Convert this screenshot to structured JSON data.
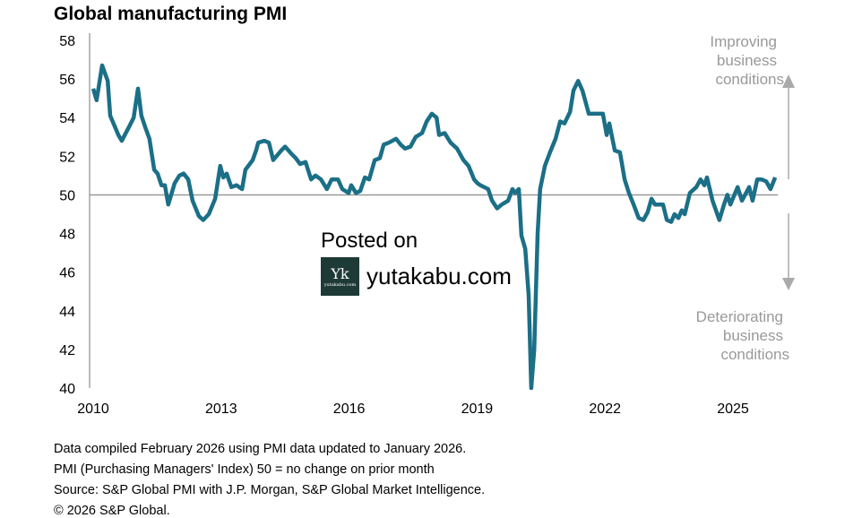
{
  "chart_data": {
    "type": "line",
    "title": "Global manufacturing PMI",
    "xlabel": "",
    "ylabel": "",
    "xlim": [
      2010,
      2026.3
    ],
    "ylim": [
      40,
      58
    ],
    "yticks": [
      40,
      42,
      44,
      46,
      48,
      50,
      52,
      54,
      56,
      58
    ],
    "xticks": [
      2010,
      2013,
      2016,
      2019,
      2022,
      2025
    ],
    "reference_line": 50,
    "series": [
      {
        "name": "Global manufacturing PMI",
        "color": "#1b6f87",
        "x": [
          2010.0,
          2010.08,
          2010.21,
          2010.34,
          2010.4,
          2010.59,
          2010.67,
          2010.86,
          2010.95,
          2011.05,
          2011.13,
          2011.22,
          2011.32,
          2011.43,
          2011.51,
          2011.6,
          2011.68,
          2011.76,
          2011.91,
          2012.02,
          2012.12,
          2012.23,
          2012.33,
          2012.48,
          2012.58,
          2012.71,
          2012.86,
          2012.98,
          2013.05,
          2013.13,
          2013.24,
          2013.36,
          2013.49,
          2013.57,
          2013.74,
          2013.82,
          2013.87,
          2014.01,
          2014.12,
          2014.22,
          2014.41,
          2014.5,
          2014.66,
          2014.75,
          2014.85,
          2014.98,
          2015.11,
          2015.21,
          2015.34,
          2015.48,
          2015.59,
          2015.74,
          2015.84,
          2015.99,
          2016.05,
          2016.16,
          2016.26,
          2016.37,
          2016.47,
          2016.6,
          2016.72,
          2016.81,
          2016.93,
          2017.1,
          2017.21,
          2017.31,
          2017.44,
          2017.56,
          2017.71,
          2017.82,
          2017.94,
          2018.05,
          2018.11,
          2018.24,
          2018.38,
          2018.53,
          2018.68,
          2018.8,
          2018.93,
          2019.01,
          2019.08,
          2019.26,
          2019.35,
          2019.47,
          2019.58,
          2019.73,
          2019.83,
          2019.89,
          2019.98,
          2020.04,
          2020.13,
          2020.21,
          2020.27,
          2020.34,
          2020.42,
          2020.48,
          2020.59,
          2020.71,
          2020.84,
          2020.95,
          2021.05,
          2021.18,
          2021.26,
          2021.37,
          2021.47,
          2021.62,
          2021.83,
          2021.95,
          2022.04,
          2022.1,
          2022.23,
          2022.35,
          2022.46,
          2022.56,
          2022.67,
          2022.79,
          2022.9,
          2023.0,
          2023.09,
          2023.17,
          2023.36,
          2023.45,
          2023.55,
          2023.63,
          2023.72,
          2023.8,
          2023.87,
          2023.99,
          2024.14,
          2024.24,
          2024.33,
          2024.39,
          2024.52,
          2024.68,
          2024.79,
          2024.87,
          2024.94,
          2025.11,
          2025.21,
          2025.38,
          2025.46,
          2025.57,
          2025.67,
          2025.78,
          2025.88,
          2025.99
        ],
        "values": [
          55.5,
          54.9,
          56.7,
          55.9,
          54.1,
          53.1,
          52.8,
          53.6,
          54.0,
          55.5,
          54.1,
          53.5,
          52.9,
          51.3,
          51.1,
          50.5,
          50.5,
          49.5,
          50.6,
          51.0,
          51.1,
          50.8,
          49.7,
          48.9,
          48.7,
          49.0,
          49.8,
          51.5,
          50.9,
          51.1,
          50.4,
          50.5,
          50.3,
          51.3,
          51.8,
          52.3,
          52.7,
          52.8,
          52.7,
          51.8,
          52.3,
          52.5,
          52.1,
          51.9,
          51.6,
          51.7,
          50.8,
          51.0,
          50.8,
          50.3,
          50.8,
          50.8,
          50.3,
          50.1,
          50.5,
          50.1,
          50.2,
          50.9,
          50.8,
          51.8,
          51.9,
          52.6,
          52.7,
          52.9,
          52.6,
          52.4,
          52.5,
          53.0,
          53.2,
          53.8,
          54.2,
          54.0,
          53.1,
          53.2,
          52.7,
          52.4,
          51.8,
          51.5,
          50.8,
          50.6,
          50.5,
          50.3,
          49.7,
          49.3,
          49.5,
          49.7,
          50.3,
          50.1,
          50.3,
          47.9,
          47.2,
          44.8,
          39.6,
          42.0,
          48.0,
          50.3,
          51.5,
          52.2,
          52.9,
          53.8,
          53.7,
          54.3,
          55.4,
          55.9,
          55.4,
          54.2,
          54.2,
          54.2,
          53.1,
          53.7,
          52.3,
          52.2,
          50.8,
          50.1,
          49.5,
          48.8,
          48.7,
          49.1,
          49.8,
          49.5,
          49.5,
          48.7,
          48.6,
          49.0,
          48.8,
          49.2,
          49.0,
          50.1,
          50.4,
          50.8,
          50.5,
          50.9,
          49.7,
          48.7,
          49.5,
          50.0,
          49.5,
          50.4,
          49.7,
          50.4,
          49.7,
          50.8,
          50.8,
          50.7,
          50.3,
          50.9
        ]
      }
    ],
    "annotations": {
      "up": [
        "Improving",
        "business",
        "conditions"
      ],
      "down": [
        "Deteriorating",
        "business",
        "conditions"
      ]
    }
  },
  "footer": [
    "Data compiled February 2026 using PMI data updated to January 2026.",
    "PMI (Purchasing Managers' Index) 50 = no change on prior month",
    "Source: S&P Global  PMI with J.P. Morgan, S&P Global Market Intelligence.",
    "© 2026 S&P Global."
  ],
  "watermark": {
    "posted": "Posted on",
    "site": "yutakabu.com",
    "logo_letter": "Yk",
    "logo_small": "yutakabu.com"
  }
}
